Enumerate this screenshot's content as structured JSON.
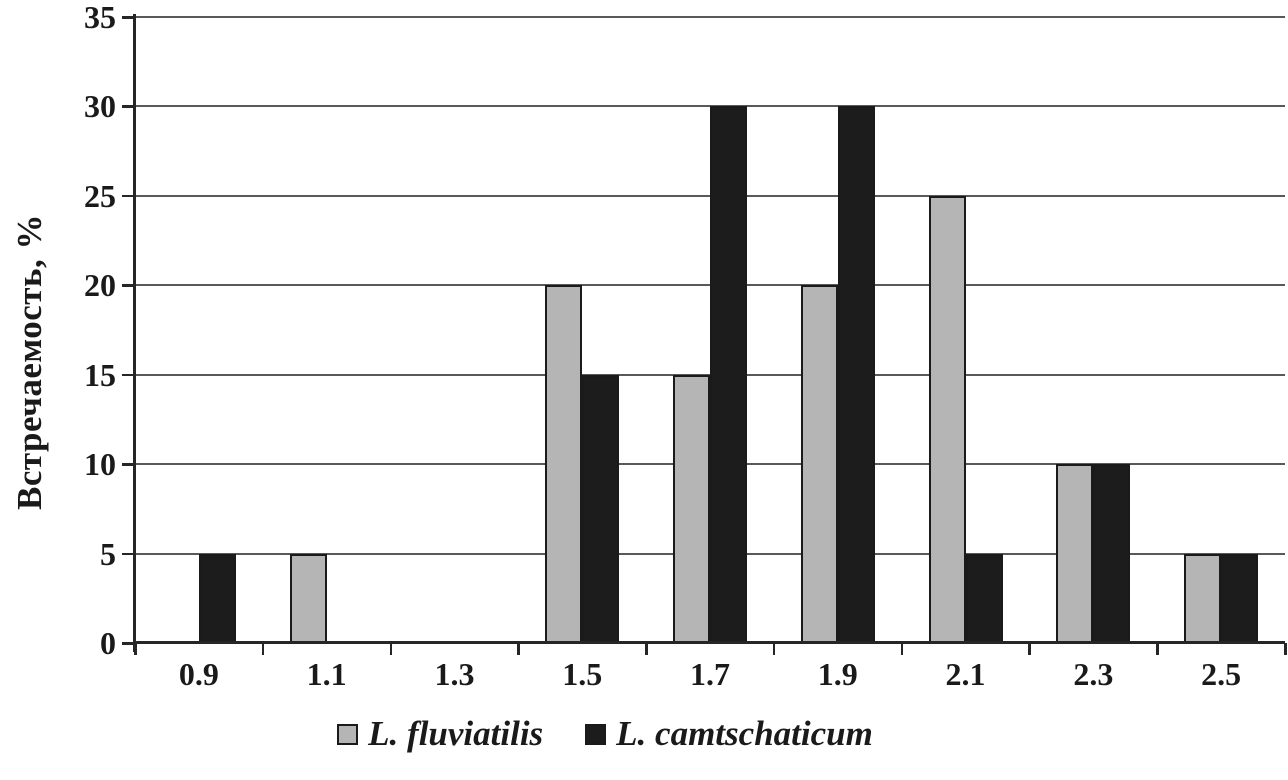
{
  "chart_data": {
    "type": "bar",
    "title": "",
    "xlabel": "",
    "ylabel": "Встречаемость, %",
    "categories": [
      "0.9",
      "1.1",
      "1.3",
      "1.5",
      "1.7",
      "1.9",
      "2.1",
      "2.3",
      "2.5"
    ],
    "series": [
      {
        "name": "L. fluviatilis",
        "color": "#b5b5b5",
        "values": [
          0,
          5,
          0,
          20,
          15,
          20,
          25,
          10,
          5
        ]
      },
      {
        "name": "L. camtschaticum",
        "color": "#1c1c1c",
        "values": [
          5,
          0,
          0,
          15,
          30,
          30,
          5,
          10,
          5
        ]
      }
    ],
    "ylim": [
      0,
      35
    ],
    "yticks": [
      0,
      5,
      10,
      15,
      20,
      25,
      30,
      35
    ],
    "grid": true,
    "legend_position": "bottom"
  },
  "colors": {
    "axis": "#262626",
    "gridline": "#595959",
    "text": "#1a1a1a",
    "background": "#ffffff",
    "bar_border": "#1a1a1a"
  }
}
